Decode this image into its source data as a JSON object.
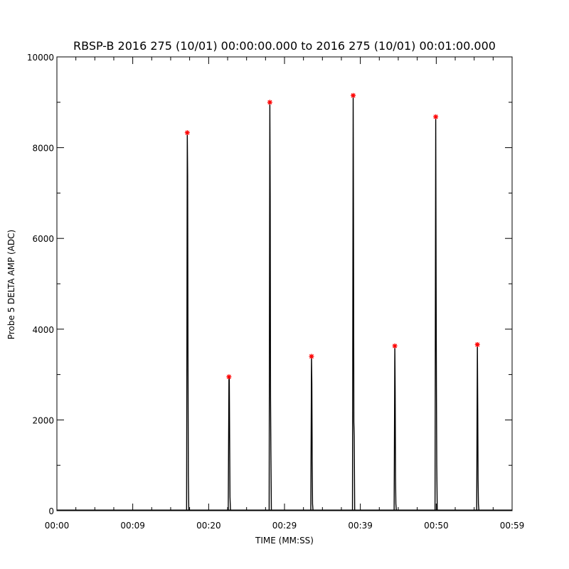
{
  "chart_data": {
    "type": "line",
    "title": "RBSP-B 2016 275 (10/01) 00:00:00.000 to 2016 275 (10/01) 00:01:00.000",
    "xlabel": "TIME (MM:SS)",
    "ylabel": "Probe 5 DELTA AMP (ADC)",
    "xlim": [
      0,
      59
    ],
    "ylim": [
      0,
      10000
    ],
    "x_ticks": [
      0,
      9.83,
      19.67,
      29.5,
      39.33,
      49.17,
      59
    ],
    "x_tick_labels": [
      "00:00",
      "00:09",
      "00:20",
      "00:29",
      "00:39",
      "00:50",
      "00:59"
    ],
    "y_ticks": [
      0,
      2000,
      4000,
      6000,
      8000,
      10000
    ],
    "y_tick_labels": [
      "0",
      "2000",
      "4000",
      "6000",
      "8000",
      "10000"
    ],
    "grid": false,
    "line_color": "#000000",
    "marker_color": "#ff0000",
    "pulses": [
      {
        "t": 16.9,
        "max": 8330,
        "levels": [
          7400,
          3400,
          800
        ]
      },
      {
        "t": 22.3,
        "max": 2950,
        "levels": [
          2900,
          1600,
          300
        ]
      },
      {
        "t": 27.6,
        "max": 9000,
        "levels": [
          6950,
          2500,
          1300
        ]
      },
      {
        "t": 33.0,
        "max": 3400,
        "levels": [
          2800,
          1100,
          150
        ]
      },
      {
        "t": 38.4,
        "max": 9150,
        "levels": [
          6250,
          1950,
          1650
        ]
      },
      {
        "t": 43.8,
        "max": 3630,
        "levels": [
          2600,
          750,
          150
        ]
      },
      {
        "t": 49.1,
        "max": 8680,
        "levels": [
          5370,
          2720,
          1000
        ]
      },
      {
        "t": 54.5,
        "max": 3660,
        "levels": [
          2330,
          700,
          150
        ]
      }
    ],
    "series": [
      {
        "x": [
          16.9,
          22.3,
          27.6,
          33.0,
          38.4,
          43.8,
          49.1,
          54.5
        ],
        "values": [
          8330,
          2950,
          9000,
          3400,
          9150,
          3630,
          8680,
          3660
        ]
      }
    ]
  }
}
